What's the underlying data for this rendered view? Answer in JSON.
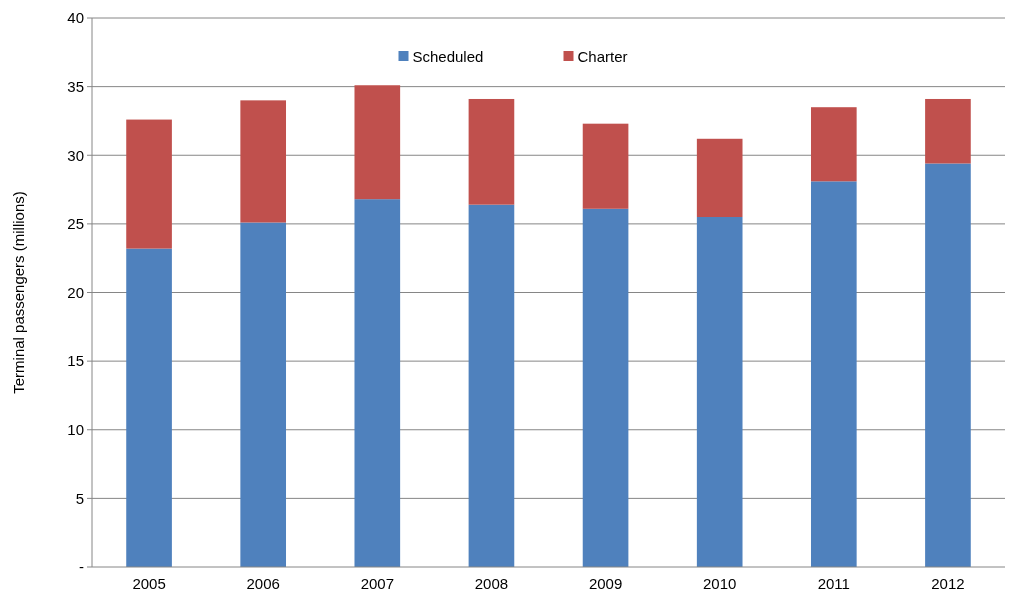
{
  "chart_data": {
    "type": "bar",
    "stacked": true,
    "ylabel": "Terminal passengers (millions)",
    "categories": [
      "2005",
      "2006",
      "2007",
      "2008",
      "2009",
      "2010",
      "2011",
      "2012"
    ],
    "series": [
      {
        "name": "Scheduled",
        "color": "#4f81bd",
        "values": [
          23.2,
          25.1,
          26.8,
          26.4,
          26.1,
          25.5,
          28.1,
          29.4
        ]
      },
      {
        "name": "Charter",
        "color": "#c0504d",
        "values": [
          9.4,
          8.9,
          8.3,
          7.7,
          6.2,
          5.7,
          5.4,
          4.7
        ]
      }
    ],
    "ylim": [
      0,
      40
    ],
    "yticks": [
      {
        "value": 0,
        "label": "-"
      },
      5,
      10,
      15,
      20,
      25,
      30,
      35,
      40
    ],
    "grid": "y",
    "legend": "top"
  }
}
